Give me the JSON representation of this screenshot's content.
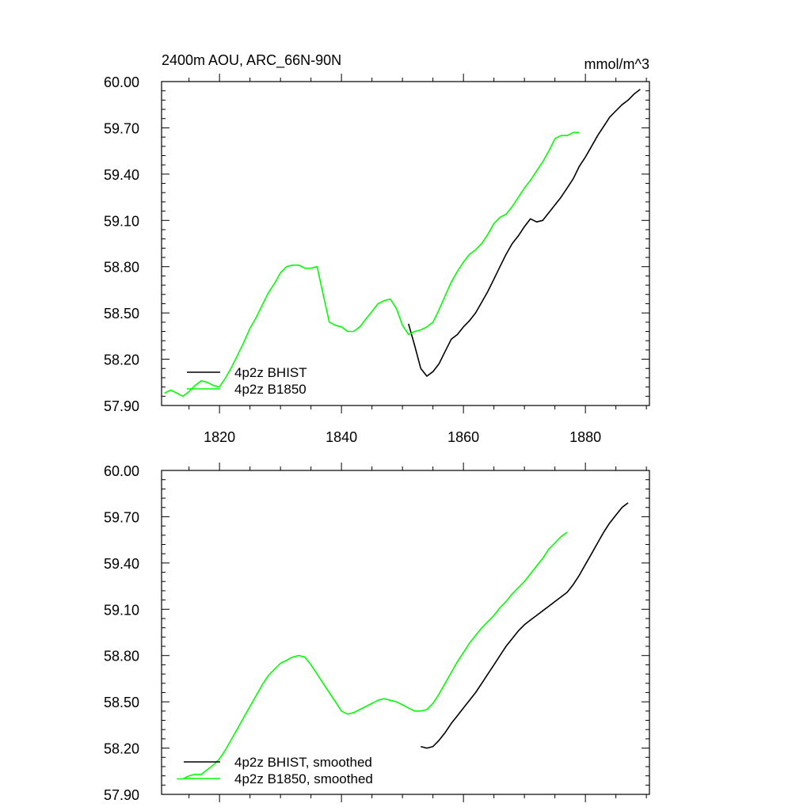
{
  "chart_data": [
    {
      "type": "line",
      "title": "2400m AOU, ARC_66N-90N",
      "units": "mmol/m^3",
      "xlim": [
        1810.5,
        1890.5
      ],
      "ylim": [
        57.9,
        60.0
      ],
      "x_ticks": [
        1820,
        1840,
        1860,
        1880
      ],
      "x_tick_labels": [
        "1820",
        "1840",
        "1860",
        "1880"
      ],
      "y_ticks": [
        57.9,
        58.2,
        58.5,
        58.8,
        59.1,
        59.4,
        59.7,
        60.0
      ],
      "y_tick_labels": [
        "57.90",
        "58.20",
        "58.50",
        "58.80",
        "59.10",
        "59.40",
        "59.70",
        "60.00"
      ],
      "series": [
        {
          "name": "4p2z BHIST",
          "color": "#000000",
          "x": [
            1851,
            1852,
            1853,
            1854,
            1855,
            1856,
            1857,
            1858,
            1859,
            1860,
            1861,
            1862,
            1863,
            1864,
            1865,
            1866,
            1867,
            1868,
            1869,
            1870,
            1871,
            1872,
            1873,
            1874,
            1875,
            1876,
            1877,
            1878,
            1879,
            1880,
            1881,
            1882,
            1883,
            1884,
            1885,
            1886,
            1887,
            1888,
            1889
          ],
          "values": [
            58.43,
            58.29,
            58.14,
            58.09,
            58.12,
            58.17,
            58.25,
            58.33,
            58.36,
            58.41,
            58.45,
            58.5,
            58.57,
            58.64,
            58.72,
            58.8,
            58.88,
            58.95,
            59.0,
            59.06,
            59.11,
            59.09,
            59.1,
            59.15,
            59.2,
            59.25,
            59.31,
            59.37,
            59.45,
            59.51,
            59.58,
            59.65,
            59.71,
            59.77,
            59.81,
            59.85,
            59.88,
            59.92,
            59.95
          ]
        },
        {
          "name": "4p2z B1850",
          "color": "#00ff00",
          "x": [
            1811,
            1812,
            1813,
            1814,
            1815,
            1816,
            1817,
            1818,
            1819,
            1820,
            1821,
            1822,
            1823,
            1824,
            1825,
            1826,
            1827,
            1828,
            1829,
            1830,
            1831,
            1832,
            1833,
            1834,
            1835,
            1836,
            1837,
            1838,
            1839,
            1840,
            1841,
            1842,
            1843,
            1844,
            1845,
            1846,
            1847,
            1848,
            1849,
            1850,
            1851,
            1852,
            1853,
            1854,
            1855,
            1856,
            1857,
            1858,
            1859,
            1860,
            1861,
            1862,
            1863,
            1864,
            1865,
            1866,
            1867,
            1868,
            1869,
            1870,
            1871,
            1872,
            1873,
            1874,
            1875,
            1876,
            1877,
            1878,
            1879
          ],
          "values": [
            57.98,
            58.0,
            57.98,
            57.96,
            57.99,
            58.03,
            58.06,
            58.05,
            58.03,
            58.02,
            58.08,
            58.15,
            58.23,
            58.31,
            58.4,
            58.47,
            58.55,
            58.63,
            58.69,
            58.76,
            58.8,
            58.81,
            58.81,
            58.79,
            58.79,
            58.8,
            58.62,
            58.44,
            58.42,
            58.41,
            58.38,
            58.38,
            58.41,
            58.46,
            58.51,
            58.56,
            58.58,
            58.59,
            58.53,
            58.42,
            58.36,
            58.38,
            58.39,
            58.41,
            58.44,
            58.52,
            58.61,
            58.7,
            58.77,
            58.83,
            58.88,
            58.91,
            58.95,
            59.01,
            59.08,
            59.12,
            59.14,
            59.19,
            59.25,
            59.31,
            59.36,
            59.42,
            59.48,
            59.55,
            59.63,
            59.65,
            59.65,
            59.67,
            59.67
          ]
        }
      ]
    },
    {
      "type": "line",
      "title": "",
      "units": "",
      "xlim": [
        1810.5,
        1890.5
      ],
      "ylim": [
        57.9,
        60.0
      ],
      "x_ticks": [
        1820,
        1840,
        1860,
        1880
      ],
      "x_tick_labels": [],
      "y_ticks": [
        57.9,
        58.2,
        58.5,
        58.8,
        59.1,
        59.4,
        59.7,
        60.0
      ],
      "y_tick_labels": [
        "57.90",
        "58.20",
        "58.50",
        "58.80",
        "59.10",
        "59.40",
        "59.70",
        "60.00"
      ],
      "series": [
        {
          "name": "4p2z BHIST, smoothed",
          "color": "#000000",
          "x": [
            1853,
            1854,
            1855,
            1856,
            1857,
            1858,
            1859,
            1860,
            1861,
            1862,
            1863,
            1864,
            1865,
            1866,
            1867,
            1868,
            1869,
            1870,
            1871,
            1872,
            1873,
            1874,
            1875,
            1876,
            1877,
            1878,
            1879,
            1880,
            1881,
            1882,
            1883,
            1884,
            1885,
            1886,
            1887
          ],
          "values": [
            58.21,
            58.2,
            58.21,
            58.25,
            58.3,
            58.36,
            58.41,
            58.46,
            58.51,
            58.56,
            58.62,
            58.68,
            58.74,
            58.8,
            58.86,
            58.91,
            58.96,
            59.0,
            59.03,
            59.06,
            59.09,
            59.12,
            59.15,
            59.18,
            59.21,
            59.26,
            59.32,
            59.39,
            59.46,
            59.53,
            59.6,
            59.66,
            59.71,
            59.76,
            59.79
          ]
        },
        {
          "name": "4p2z B1850, smoothed",
          "color": "#00ff00",
          "x": [
            1813,
            1814,
            1815,
            1816,
            1817,
            1818,
            1819,
            1820,
            1821,
            1822,
            1823,
            1824,
            1825,
            1826,
            1827,
            1828,
            1829,
            1830,
            1831,
            1832,
            1833,
            1834,
            1835,
            1836,
            1837,
            1838,
            1839,
            1840,
            1841,
            1842,
            1843,
            1844,
            1845,
            1846,
            1847,
            1848,
            1849,
            1850,
            1851,
            1852,
            1853,
            1854,
            1855,
            1856,
            1857,
            1858,
            1859,
            1860,
            1861,
            1862,
            1863,
            1864,
            1865,
            1866,
            1867,
            1868,
            1869,
            1870,
            1871,
            1872,
            1873,
            1874,
            1875,
            1876,
            1877
          ],
          "values": [
            58.0,
            58.0,
            58.02,
            58.03,
            58.03,
            58.06,
            58.09,
            58.13,
            58.19,
            58.26,
            58.33,
            58.4,
            58.47,
            58.54,
            58.61,
            58.67,
            58.71,
            58.75,
            58.77,
            58.79,
            58.8,
            58.79,
            58.74,
            58.68,
            58.62,
            58.56,
            58.5,
            58.44,
            58.42,
            58.43,
            58.45,
            58.47,
            58.49,
            58.51,
            58.52,
            58.51,
            58.5,
            58.48,
            58.46,
            58.44,
            58.44,
            58.45,
            58.49,
            58.55,
            58.62,
            58.69,
            58.76,
            58.82,
            58.88,
            58.93,
            58.98,
            59.02,
            59.06,
            59.11,
            59.15,
            59.2,
            59.24,
            59.28,
            59.33,
            59.38,
            59.43,
            59.49,
            59.53,
            59.57,
            59.6
          ]
        }
      ]
    }
  ]
}
